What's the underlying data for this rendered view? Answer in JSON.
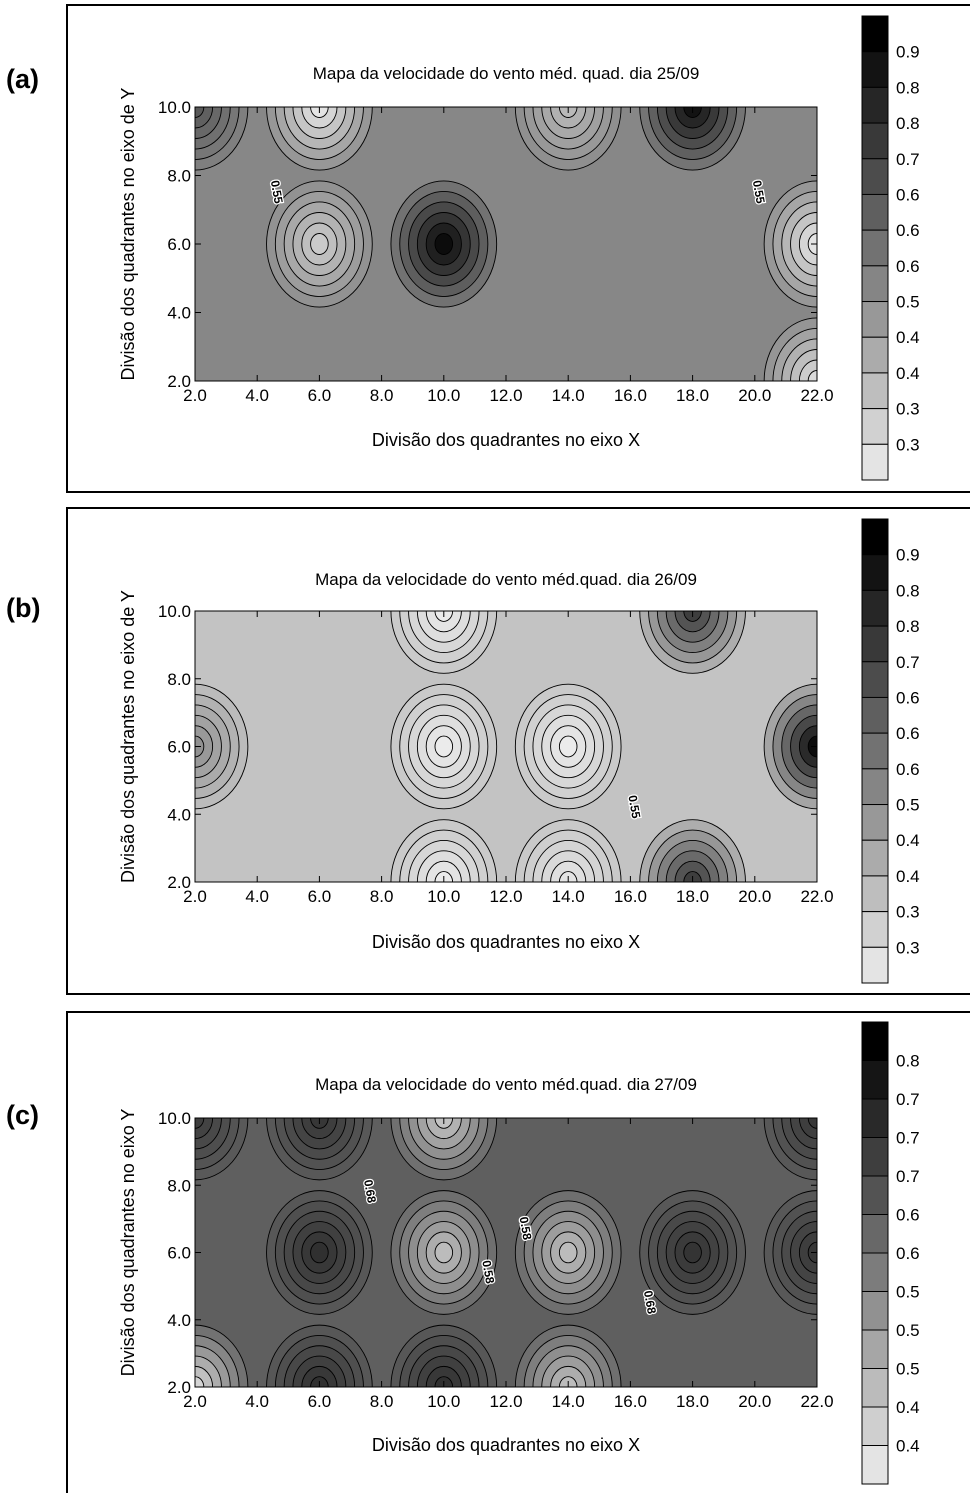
{
  "chart_data": [
    {
      "panel_label": "(a)",
      "type": "heatmap",
      "title": "Mapa da velocidade do vento méd. quad. dia 25/09",
      "xlabel": "Divisão dos quadrantes no eixo X",
      "ylabel": "Divisão dos quadrantes no eixo de Y",
      "xlim": [
        2.0,
        22.0
      ],
      "ylim": [
        2.0,
        10.0
      ],
      "x_ticks": [
        "2.0",
        "4.0",
        "6.0",
        "8.0",
        "10.0",
        "12.0",
        "14.0",
        "16.0",
        "18.0",
        "20.0",
        "22.0"
      ],
      "y_ticks": [
        "2.0",
        "4.0",
        "6.0",
        "8.0",
        "10.0"
      ],
      "legend_labels": [
        "0.9",
        "0.8",
        "0.8",
        "0.7",
        "0.6",
        "0.6",
        "0.6",
        "0.5",
        "0.4",
        "0.4",
        "0.3",
        "0.3"
      ],
      "contour_labels": [
        {
          "text": "0.55",
          "x": 4.5,
          "y": 7.5
        },
        {
          "text": "0.55",
          "x": 20.0,
          "y": 7.5
        }
      ],
      "field_base": 0.58,
      "features": [
        {
          "x": 6.0,
          "y": 10.0,
          "value": 0.3
        },
        {
          "x": 6.0,
          "y": 6.0,
          "value": 0.38
        },
        {
          "x": 10.0,
          "y": 6.0,
          "value": 0.95
        },
        {
          "x": 14.0,
          "y": 10.0,
          "value": 0.43
        },
        {
          "x": 18.0,
          "y": 10.0,
          "value": 0.93
        },
        {
          "x": 22.0,
          "y": 6.0,
          "value": 0.3
        },
        {
          "x": 22.0,
          "y": 2.0,
          "value": 0.33
        },
        {
          "x": 2.0,
          "y": 10.0,
          "value": 0.72
        }
      ]
    },
    {
      "panel_label": "(b)",
      "type": "heatmap",
      "title": "Mapa da velocidade do vento méd.quad. dia 26/09",
      "xlabel": "Divisão dos quadrantes no eixo X",
      "ylabel": "Divisão dos quadrantes no eixo de Y",
      "xlim": [
        2.0,
        22.0
      ],
      "ylim": [
        2.0,
        10.0
      ],
      "x_ticks": [
        "2.0",
        "4.0",
        "6.0",
        "8.0",
        "10.0",
        "12.0",
        "14.0",
        "16.0",
        "18.0",
        "20.0",
        "22.0"
      ],
      "y_ticks": [
        "2.0",
        "4.0",
        "6.0",
        "8.0",
        "10.0"
      ],
      "legend_labels": [
        "0.9",
        "0.8",
        "0.8",
        "0.7",
        "0.6",
        "0.6",
        "0.6",
        "0.5",
        "0.4",
        "0.4",
        "0.3",
        "0.3"
      ],
      "contour_labels": [
        {
          "text": "0.55",
          "x": 16.0,
          "y": 4.2
        }
      ],
      "field_base": 0.4,
      "features": [
        {
          "x": 10.0,
          "y": 6.0,
          "value": 0.28
        },
        {
          "x": 10.0,
          "y": 10.0,
          "value": 0.28
        },
        {
          "x": 10.0,
          "y": 2.0,
          "value": 0.28
        },
        {
          "x": 14.0,
          "y": 6.0,
          "value": 0.28
        },
        {
          "x": 14.0,
          "y": 2.0,
          "value": 0.3
        },
        {
          "x": 2.0,
          "y": 6.0,
          "value": 0.55
        },
        {
          "x": 22.0,
          "y": 6.0,
          "value": 0.95
        },
        {
          "x": 18.0,
          "y": 10.0,
          "value": 0.8
        },
        {
          "x": 18.0,
          "y": 2.0,
          "value": 0.8
        }
      ]
    },
    {
      "panel_label": "(c)",
      "type": "heatmap",
      "title": "Mapa da velocidade do vento méd.quad. dia 27/09",
      "xlabel": "Divisão dos quadrantes no eixo X",
      "ylabel": "Divisão dos quadrantes no eixo Y",
      "xlim": [
        2.0,
        22.0
      ],
      "ylim": [
        2.0,
        10.0
      ],
      "x_ticks": [
        "2.0",
        "4.0",
        "6.0",
        "8.0",
        "10.0",
        "12.0",
        "14.0",
        "16.0",
        "18.0",
        "20.0",
        "22.0"
      ],
      "y_ticks": [
        "2.0",
        "4.0",
        "6.0",
        "8.0",
        "10.0"
      ],
      "legend_labels": [
        "0.8",
        "0.7",
        "0.7",
        "0.7",
        "0.6",
        "0.6",
        "0.5",
        "0.5",
        "0.5",
        "0.4",
        "0.4"
      ],
      "contour_labels": [
        {
          "text": "0.68",
          "x": 7.5,
          "y": 7.8
        },
        {
          "text": "0.58",
          "x": 12.5,
          "y": 6.7
        },
        {
          "text": "0.58",
          "x": 11.3,
          "y": 5.4
        },
        {
          "text": "0.68",
          "x": 16.5,
          "y": 4.5
        }
      ],
      "field_base": 0.7,
      "features": [
        {
          "x": 6.0,
          "y": 10.0,
          "value": 0.82
        },
        {
          "x": 6.0,
          "y": 6.0,
          "value": 0.84
        },
        {
          "x": 6.0,
          "y": 2.0,
          "value": 0.84
        },
        {
          "x": 10.0,
          "y": 2.0,
          "value": 0.84
        },
        {
          "x": 18.0,
          "y": 6.0,
          "value": 0.83
        },
        {
          "x": 22.0,
          "y": 10.0,
          "value": 0.82
        },
        {
          "x": 22.0,
          "y": 6.0,
          "value": 0.82
        },
        {
          "x": 2.0,
          "y": 10.0,
          "value": 0.8
        },
        {
          "x": 10.0,
          "y": 10.0,
          "value": 0.4
        },
        {
          "x": 10.0,
          "y": 6.0,
          "value": 0.42
        },
        {
          "x": 14.0,
          "y": 6.0,
          "value": 0.42
        },
        {
          "x": 14.0,
          "y": 2.0,
          "value": 0.42
        },
        {
          "x": 2.0,
          "y": 2.0,
          "value": 0.35
        }
      ]
    }
  ]
}
